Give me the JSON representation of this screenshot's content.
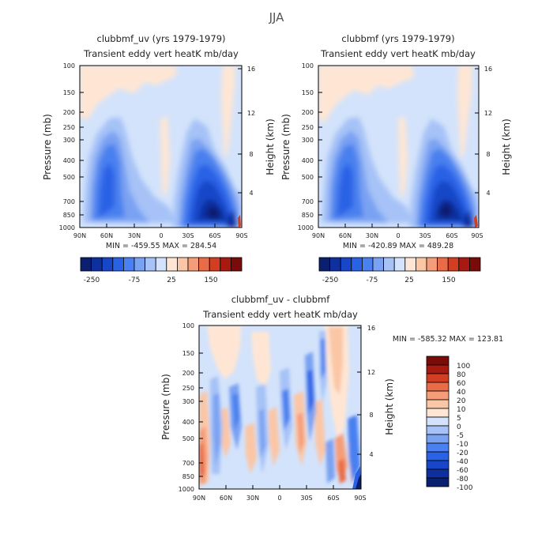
{
  "page_title": "JJA",
  "chart_data": [
    {
      "type": "heatmap",
      "id": "panel-a",
      "title": "clubbmf_uv (yrs 1979-1979)",
      "subtitle": "Transient eddy vert heatK mb/day",
      "ylabel": "Pressure (mb)",
      "y2label": "Height (km)",
      "x_ticks": [
        "90N",
        "60N",
        "30N",
        "0",
        "30S",
        "60S",
        "90S"
      ],
      "y_ticks": [
        "100",
        "150",
        "200",
        "250",
        "300",
        "400",
        "500",
        "700",
        "850",
        "1000"
      ],
      "y2_ticks": [
        "16",
        "12",
        "8",
        "4"
      ],
      "stats": "MIN = -459.55   MAX = 284.54",
      "colorbar_labels": [
        "-250",
        "-75",
        "25",
        "150"
      ]
    },
    {
      "type": "heatmap",
      "id": "panel-b",
      "title": "clubbmf (yrs 1979-1979)",
      "subtitle": "Transient eddy vert heatK mb/day",
      "ylabel": "Pressure (mb)",
      "y2label": "Height (km)",
      "x_ticks": [
        "90N",
        "60N",
        "30N",
        "0",
        "30S",
        "60S",
        "90S"
      ],
      "y_ticks": [
        "100",
        "150",
        "200",
        "250",
        "300",
        "400",
        "500",
        "700",
        "850",
        "1000"
      ],
      "y2_ticks": [
        "16",
        "12",
        "8",
        "4"
      ],
      "stats": "MIN = -420.89   MAX = 489.28",
      "colorbar_labels": [
        "-250",
        "-75",
        "25",
        "150"
      ]
    },
    {
      "type": "heatmap",
      "id": "panel-c",
      "title": "clubbmf_uv - clubbmf",
      "subtitle": "Transient eddy vert heatK mb/day",
      "ylabel": "Pressure (mb)",
      "y2label": "Height (km)",
      "x_ticks": [
        "90N",
        "60N",
        "30N",
        "0",
        "30S",
        "60S",
        "90S"
      ],
      "y_ticks": [
        "100",
        "150",
        "200",
        "250",
        "300",
        "400",
        "500",
        "700",
        "850",
        "1000"
      ],
      "y2_ticks": [
        "16",
        "12",
        "8",
        "4"
      ],
      "stats": "MIN = -585.32   MAX = 123.81",
      "colorbar_labels": [
        "100",
        "80",
        "60",
        "40",
        "20",
        "10",
        "5",
        "0",
        "-5",
        "-10",
        "-20",
        "-40",
        "-60",
        "-80",
        "-100"
      ]
    }
  ],
  "colors": {
    "scale_a": [
      "#0a1f6e",
      "#0e2f9e",
      "#1746c8",
      "#2a62e6",
      "#4a80ef",
      "#7aa2f2",
      "#a6c2f7",
      "#d3e3fb",
      "#ffe6d4",
      "#fbc6a6",
      "#f59d78",
      "#ea6c46",
      "#d13e22",
      "#a8190f",
      "#790b08"
    ],
    "scale_c": [
      "#790b08",
      "#a8190f",
      "#d13e22",
      "#ea6c46",
      "#f59d78",
      "#fbc6a6",
      "#ffe6d4",
      "#d3e3fb",
      "#a6c2f7",
      "#7aa2f2",
      "#4a80ef",
      "#2a62e6",
      "#1746c8",
      "#0e2f9e",
      "#0a1f6e"
    ],
    "background_light_blue": "#d3e3fb",
    "background_light_orange": "#ffe6d4"
  }
}
